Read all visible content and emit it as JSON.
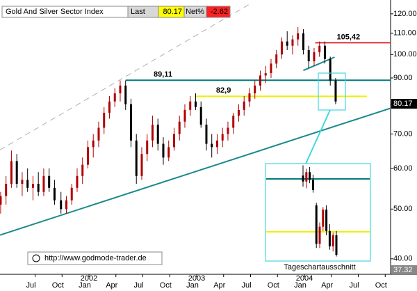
{
  "chart_data": {
    "type": "candlestick",
    "title": "Gold And Silver Sector Index",
    "last_caption": "Last",
    "last": {
      "value": 80.17,
      "label": "80.17"
    },
    "net_caption": "Net%",
    "net_pct": -2.62,
    "log_scale": true,
    "grid": false,
    "xlim": [
      2001.174,
      2004.8
    ],
    "ylim": [
      37.32,
      125.7
    ],
    "axis_floor": {
      "value": 37.32,
      "label": "37.32"
    },
    "yticks": [
      {
        "value": 40,
        "label": "40.00"
      },
      {
        "value": 50,
        "label": "50.00"
      },
      {
        "value": 60,
        "label": "60.00"
      },
      {
        "value": 70,
        "label": "70.00"
      },
      {
        "value": 80,
        "label": "80.00"
      },
      {
        "value": 90,
        "label": "90.00"
      },
      {
        "value": 100,
        "label": "100.00"
      },
      {
        "value": 110,
        "label": "110.00"
      },
      {
        "value": 120,
        "label": "120.00"
      }
    ],
    "xticks": [
      {
        "value": 2001.5,
        "label": "Jul"
      },
      {
        "value": 2001.75,
        "label": "Oct"
      },
      {
        "value": 2002,
        "label": "Jan"
      },
      {
        "value": 2002.25,
        "label": "Apr"
      },
      {
        "value": 2002.5,
        "label": "Jul"
      },
      {
        "value": 2002.75,
        "label": "Oct"
      },
      {
        "value": 2003,
        "label": "Jan"
      },
      {
        "value": 2003.25,
        "label": "Apr"
      },
      {
        "value": 2003.5,
        "label": "Jul"
      },
      {
        "value": 2003.75,
        "label": "Oct"
      },
      {
        "value": 2004,
        "label": "Jan"
      },
      {
        "value": 2004.25,
        "label": "Apr"
      },
      {
        "value": 2004.5,
        "label": "Jul"
      },
      {
        "value": 2004.75,
        "label": "Oct"
      }
    ],
    "year_labels": [
      2002,
      2003,
      2004
    ],
    "up_color": "#b00000",
    "down_color": "#000000",
    "x": [
      2001.18,
      2001.23,
      2001.28,
      2001.33,
      2001.38,
      2001.43,
      2001.48,
      2001.53,
      2001.58,
      2001.63,
      2001.68,
      2001.74,
      2001.79,
      2001.84,
      2001.89,
      2001.94,
      2001.99,
      2002.04,
      2002.09,
      2002.14,
      2002.19,
      2002.24,
      2002.29,
      2002.34,
      2002.39,
      2002.44,
      2002.49,
      2002.54,
      2002.59,
      2002.64,
      2002.69,
      2002.74,
      2002.79,
      2002.84,
      2002.89,
      2002.94,
      2002.99,
      2003.04,
      2003.09,
      2003.14,
      2003.19,
      2003.24,
      2003.29,
      2003.34,
      2003.39,
      2003.44,
      2003.49,
      2003.54,
      2003.59,
      2003.64,
      2003.69,
      2003.74,
      2003.79,
      2003.84,
      2003.89,
      2003.94,
      2003.99,
      2004.04,
      2004.09,
      2004.14,
      2004.19,
      2004.24,
      2004.29
    ],
    "open": [
      51,
      53,
      56,
      62,
      56,
      57,
      55,
      56,
      54,
      58,
      55,
      52,
      50,
      52,
      55,
      58,
      61,
      66,
      68,
      72,
      77,
      81,
      84,
      87,
      80,
      68,
      58,
      64,
      68,
      73,
      67,
      63,
      66,
      70,
      74,
      78,
      81,
      79,
      73,
      67,
      66,
      68,
      70,
      72,
      76,
      78,
      81,
      84,
      87,
      91,
      92,
      96,
      100,
      106,
      104,
      107,
      110,
      102,
      97,
      101,
      104,
      98,
      89
    ],
    "high": [
      54,
      58,
      65,
      64,
      59,
      60,
      58,
      59,
      60,
      60,
      57,
      54,
      53,
      56,
      60,
      63,
      68,
      70,
      74,
      79,
      83,
      86,
      89,
      89,
      82,
      70,
      66,
      70,
      76,
      75,
      69,
      68,
      72,
      76,
      80,
      83,
      84,
      81,
      75,
      70,
      70,
      72,
      74,
      77,
      80,
      83,
      86,
      89,
      93,
      95,
      98,
      102,
      108,
      111,
      109,
      113,
      112,
      104,
      103,
      106,
      106,
      99,
      90
    ],
    "low": [
      49,
      51,
      55,
      55,
      53,
      54,
      52,
      53,
      53,
      54,
      51,
      49,
      49,
      51,
      54,
      56,
      60,
      63,
      66,
      70,
      75,
      79,
      81,
      78,
      66,
      56,
      57,
      62,
      66,
      65,
      61,
      62,
      65,
      68,
      72,
      76,
      78,
      72,
      65,
      63,
      64,
      66,
      68,
      70,
      74,
      76,
      79,
      82,
      85,
      88,
      90,
      94,
      98,
      102,
      100,
      104,
      100,
      94,
      95,
      99,
      96,
      87,
      80
    ],
    "close": [
      53,
      56,
      62,
      56,
      57,
      55,
      56,
      54,
      58,
      55,
      52,
      50,
      52,
      55,
      58,
      61,
      66,
      68,
      72,
      77,
      81,
      84,
      87,
      80,
      68,
      58,
      64,
      68,
      73,
      67,
      63,
      66,
      70,
      74,
      78,
      81,
      79,
      73,
      67,
      66,
      68,
      70,
      72,
      76,
      78,
      81,
      84,
      87,
      91,
      92,
      96,
      100,
      106,
      104,
      107,
      110,
      102,
      97,
      101,
      104,
      98,
      89,
      81
    ],
    "levels": [
      {
        "value": 89.11,
        "label": "89,11",
        "color": "#007b7b",
        "start": 2002.34,
        "end": 2004.8,
        "label_at": 2002.6
      },
      {
        "value": 82.9,
        "label": "82,9",
        "color": "#f0f000",
        "start": 2002.98,
        "end": 2004.58,
        "label_at": 2003.18
      },
      {
        "value": 105.42,
        "label": "105,42",
        "color": "#e03030",
        "start": 2004.1,
        "end": 2004.8,
        "label_at": 2004.3
      }
    ],
    "trendlines": [
      {
        "x": [
          2001.174,
          2004.8
        ],
        "y": [
          44.5,
          78.6
        ],
        "color": "#1a8a8a",
        "dashed": false
      },
      {
        "x": [
          2001.174,
          2003.56
        ],
        "y": [
          65.2,
          127.8
        ],
        "color": "#b0b0b0",
        "dashed": true
      },
      {
        "x": [
          2003.99,
          2004.28
        ],
        "y": [
          93.1,
          98.8
        ],
        "color": "#1a8a8a",
        "dashed": false
      }
    ],
    "inset": {
      "caption": "Tageschartausschnitt",
      "ylim": [
        79.47,
        90.74
      ],
      "open": [
        89.5,
        88.8,
        89.9,
        89.0,
        86.0,
        81.5,
        83.5,
        85.5,
        83.0,
        81.2,
        82.5
      ],
      "high": [
        90.7,
        90.3,
        90.5,
        89.6,
        86.3,
        84.0,
        85.8,
        86.0,
        83.8,
        82.8,
        83.0
      ],
      "low": [
        88.2,
        88.0,
        88.6,
        87.5,
        81.0,
        81.0,
        83.0,
        82.5,
        80.8,
        80.6,
        80.0
      ],
      "close": [
        88.8,
        89.9,
        89.0,
        87.8,
        81.5,
        83.5,
        85.5,
        83.0,
        81.2,
        82.5,
        80.2
      ]
    },
    "watermark": "http://www.godmode-trader.de"
  }
}
